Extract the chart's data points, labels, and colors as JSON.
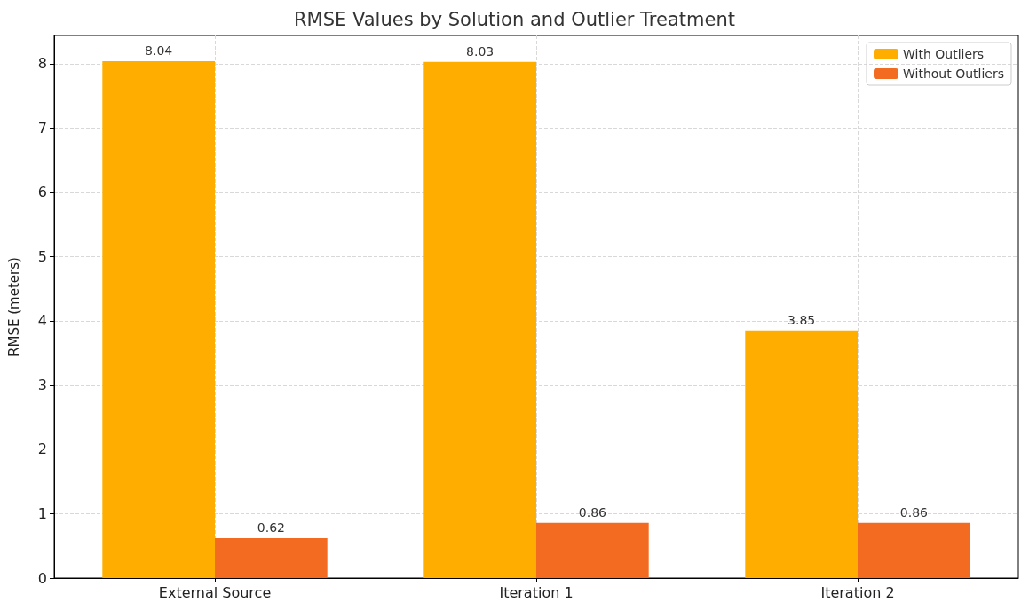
{
  "chart_data": {
    "type": "bar",
    "title": "RMSE Values by Solution and Outlier Treatment",
    "ylabel": "RMSE (meters)",
    "categories": [
      "External Source",
      "Iteration 1",
      "Iteration 2"
    ],
    "series": [
      {
        "name": "With Outliers",
        "color": "#ffae00",
        "values": [
          8.04,
          8.03,
          3.85
        ]
      },
      {
        "name": "Without Outliers",
        "color": "#f26b21",
        "values": [
          0.62,
          0.86,
          0.86
        ]
      }
    ],
    "ylim": [
      0,
      8.44
    ],
    "yticks": [
      0,
      1,
      2,
      3,
      4,
      5,
      6,
      7,
      8
    ],
    "grid": true,
    "legend": "top right",
    "data_labels": true
  }
}
